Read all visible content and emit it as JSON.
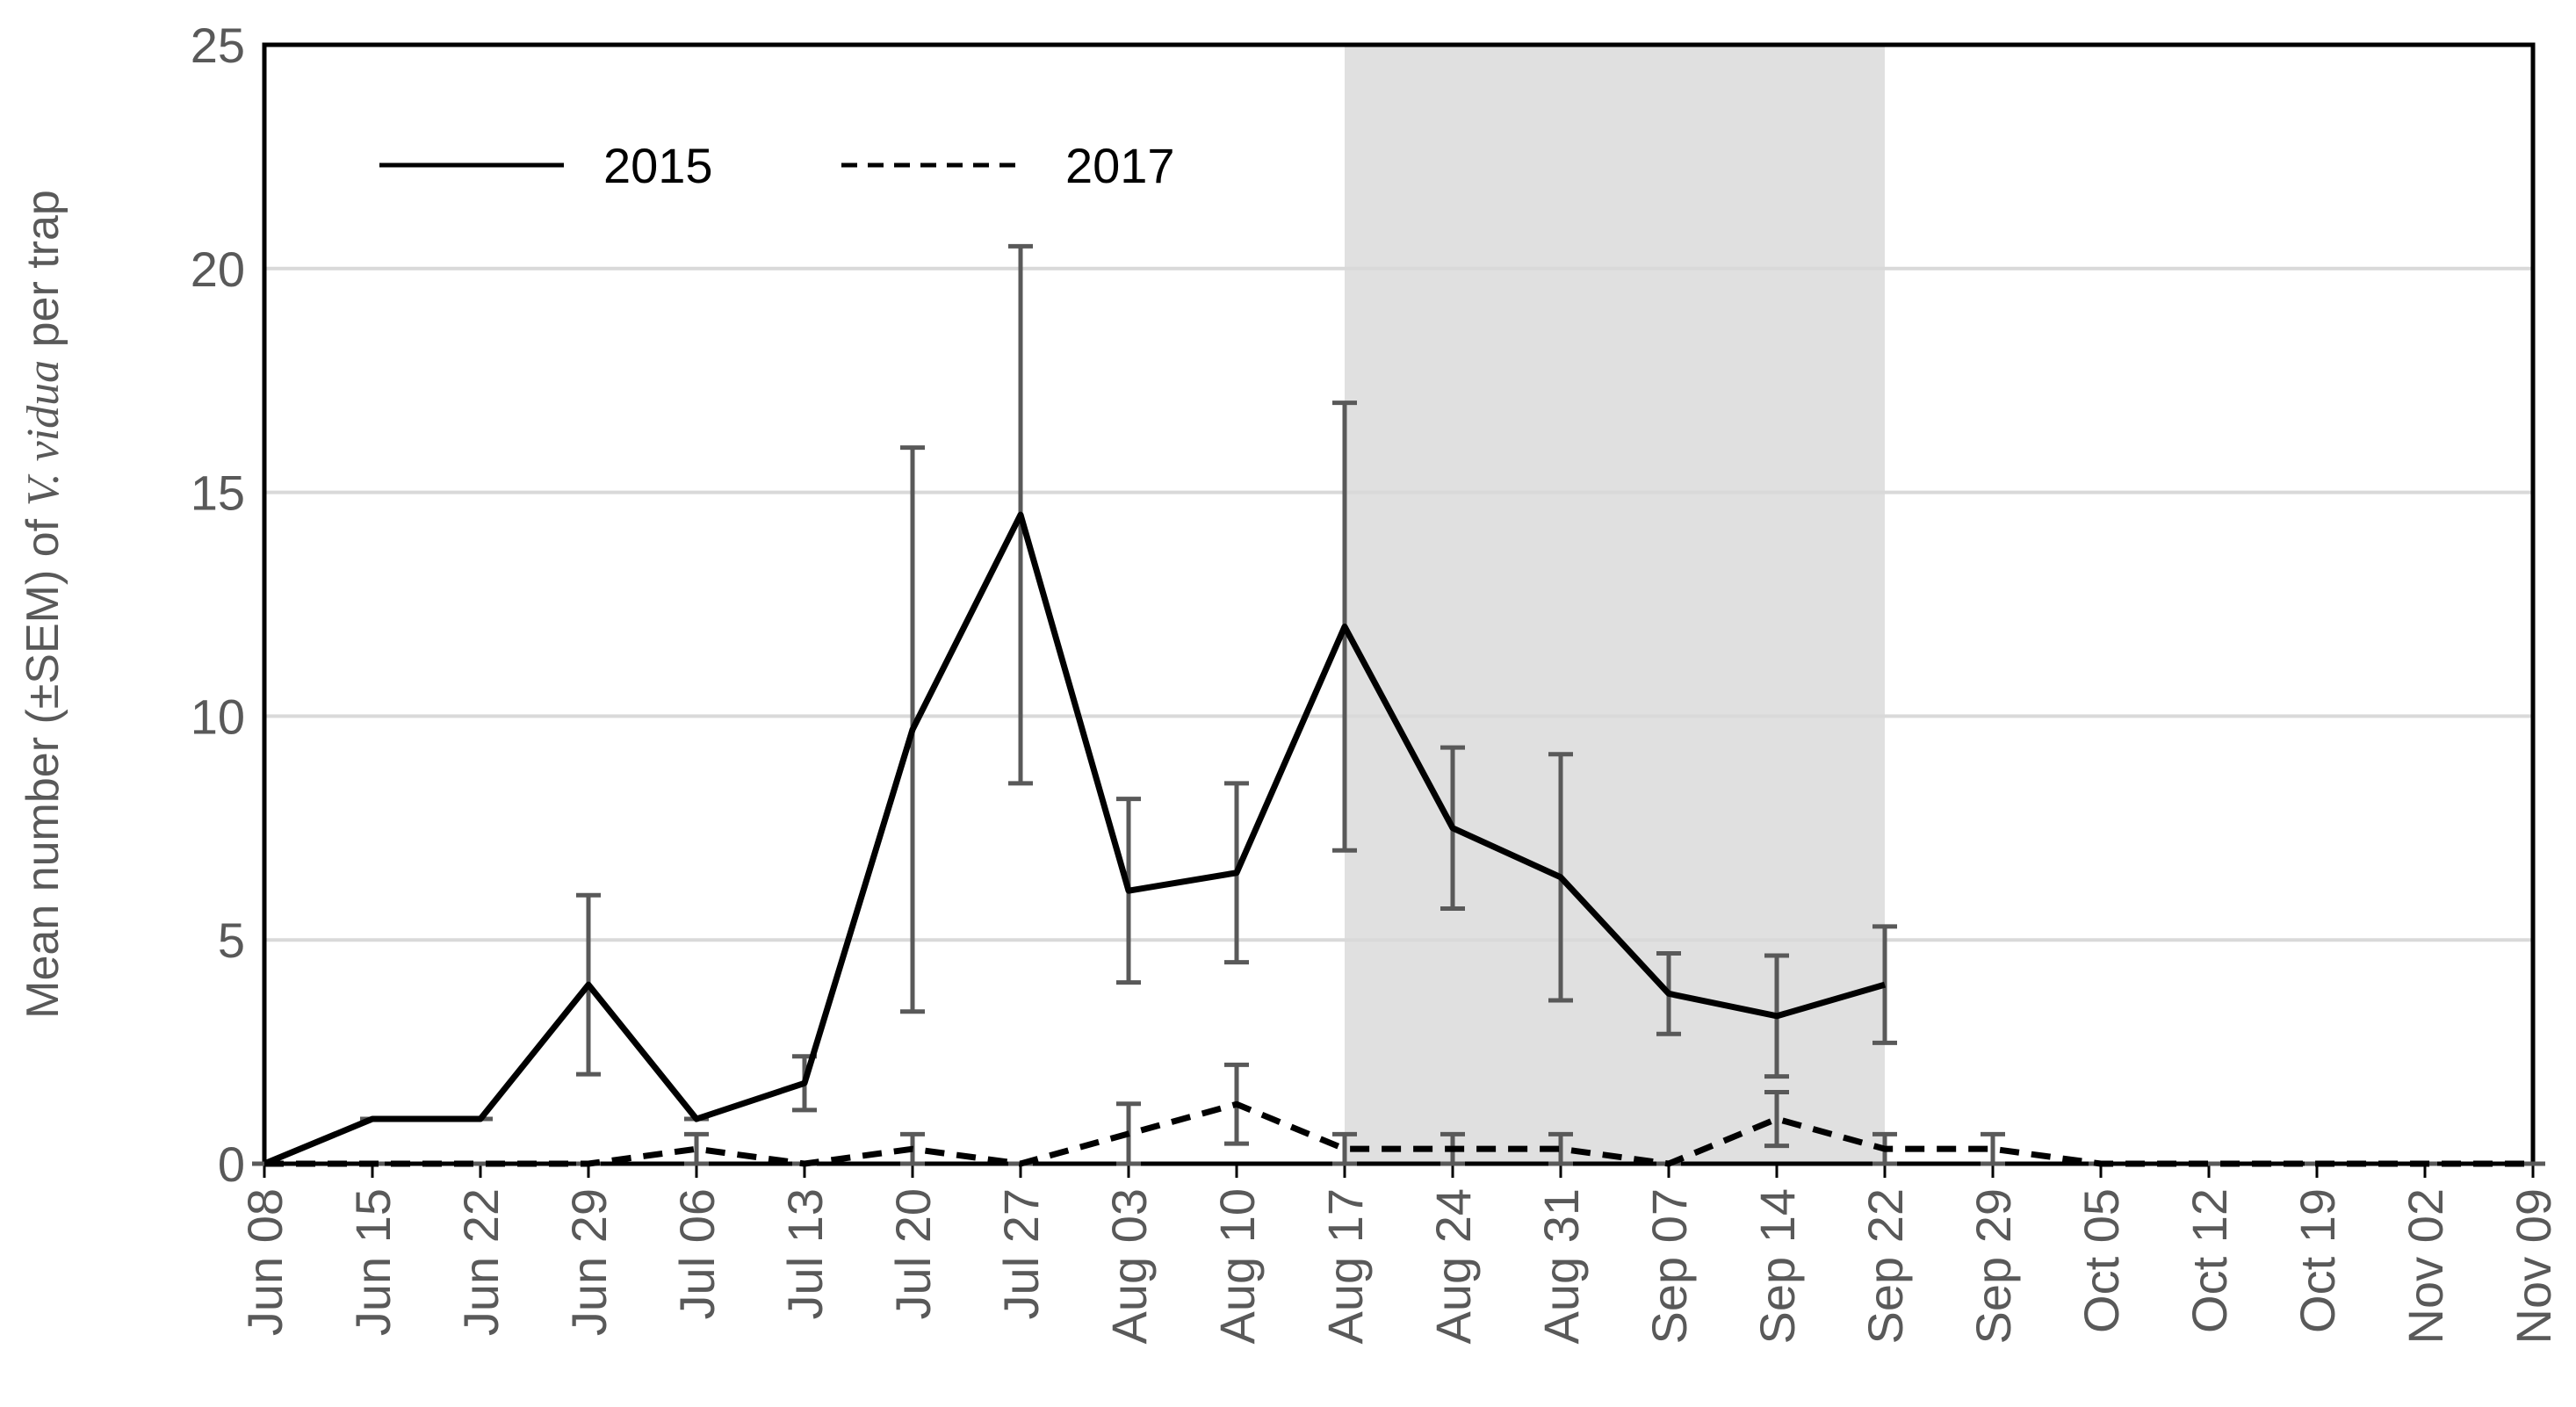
{
  "chart_data": {
    "type": "line",
    "y_label_parts": [
      "Mean number (±SEM) of ",
      "V. vidua",
      " per trap"
    ],
    "categories": [
      "Jun 08",
      "Jun 15",
      "Jun 22",
      "Jun 29",
      "Jul 06",
      "Jul 13",
      "Jul 20",
      "Jul 27",
      "Aug 03",
      "Aug 10",
      "Aug 17",
      "Aug 24",
      "Aug 31",
      "Sep 07",
      "Sep 14",
      "Sep 22",
      "Sep 29",
      "Oct 05",
      "Oct 12",
      "Oct 19",
      "Nov 02",
      "Nov 09"
    ],
    "series": [
      {
        "name": "2015",
        "color": "#000000",
        "dash": false,
        "values": [
          0,
          1,
          1,
          4,
          1,
          1.8,
          9.7,
          14.5,
          6.1,
          6.5,
          12,
          7.5,
          6.4,
          3.8,
          3.3,
          4.0,
          null,
          null,
          null,
          null,
          null,
          null
        ],
        "errors": [
          0,
          0,
          0,
          2,
          0,
          0.6,
          6.3,
          6,
          2.05,
          2,
          5,
          1.8,
          2.75,
          0.9,
          1.35,
          1.3,
          null,
          null,
          null,
          null,
          null,
          null
        ]
      },
      {
        "name": "2017",
        "color": "#000000",
        "dash": true,
        "values": [
          0,
          0,
          0,
          0,
          0.33,
          0,
          0.33,
          0,
          0.67,
          1.33,
          0.33,
          0.33,
          0.33,
          0,
          1,
          0.33,
          0.33,
          0,
          0,
          0,
          0,
          0
        ],
        "errors": [
          0,
          0,
          0,
          0,
          0.33,
          0,
          0.33,
          0,
          0.67,
          0.88,
          0.33,
          0.33,
          0.33,
          0,
          0.6,
          0.33,
          0.33,
          0,
          0,
          0,
          0,
          0
        ]
      }
    ],
    "error_color": "#595959",
    "shaded_region": [
      10,
      15
    ],
    "shade_color": "#e0e0e0",
    "ylim": [
      0,
      25
    ],
    "yticks": [
      0,
      5,
      10,
      15,
      20,
      25
    ],
    "grid": true,
    "legend": "top-left"
  }
}
